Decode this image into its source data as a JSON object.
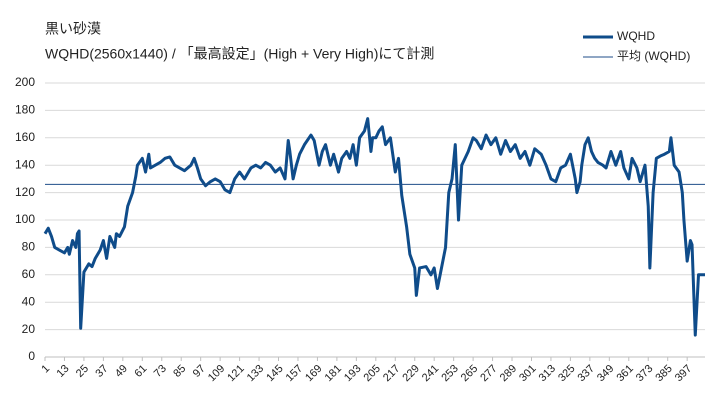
{
  "chart_data": {
    "type": "line",
    "title": "黒い砂漠",
    "subtitle": "WQHD(2560x1440) / 「最高設定」(High + Very High)にて計測",
    "x": [
      1,
      3,
      5,
      7,
      10,
      13,
      15,
      16,
      18,
      20,
      21,
      22,
      23,
      25,
      28,
      30,
      32,
      35,
      37,
      39,
      41,
      44,
      45,
      47,
      50,
      52,
      55,
      57,
      58,
      61,
      63,
      65,
      66,
      69,
      72,
      75,
      78,
      81,
      84,
      87,
      91,
      93,
      95,
      97,
      100,
      103,
      106,
      109,
      112,
      115,
      118,
      121,
      124,
      128,
      131,
      134,
      137,
      140,
      143,
      146,
      149,
      151,
      152,
      154,
      156,
      158,
      161,
      165,
      167,
      170,
      172,
      174,
      177,
      179,
      182,
      184,
      187,
      189,
      191,
      193,
      195,
      198,
      200,
      202,
      203,
      205,
      207,
      209,
      211,
      214,
      217,
      219,
      221,
      224,
      226,
      229,
      230,
      232,
      236,
      239,
      241,
      243,
      245,
      248,
      250,
      252,
      254,
      256,
      258,
      260,
      262,
      265,
      267,
      270,
      273,
      276,
      279,
      282,
      285,
      288,
      291,
      294,
      297,
      300,
      303,
      307,
      310,
      313,
      316,
      319,
      322,
      325,
      328,
      329,
      331,
      332,
      334,
      336,
      338,
      340,
      342,
      345,
      347,
      350,
      353,
      356,
      358,
      361,
      363,
      366,
      368,
      371,
      373,
      374,
      376,
      378,
      381,
      383,
      386,
      387,
      389,
      392,
      394,
      395,
      397,
      399,
      400,
      402,
      404,
      408
    ],
    "series": [
      {
        "name": "WQHD",
        "color": "#0f4c8a",
        "line_width": 3,
        "values": [
          90,
          94,
          88,
          80,
          78,
          76,
          80,
          75,
          85,
          80,
          90,
          92,
          21,
          62,
          68,
          66,
          72,
          78,
          85,
          72,
          88,
          80,
          90,
          88,
          95,
          110,
          120,
          132,
          140,
          145,
          135,
          148,
          138,
          140,
          142,
          145,
          146,
          140,
          138,
          136,
          140,
          145,
          138,
          130,
          125,
          128,
          130,
          128,
          122,
          120,
          130,
          135,
          130,
          138,
          140,
          138,
          142,
          140,
          135,
          138,
          130,
          158,
          150,
          130,
          140,
          148,
          155,
          162,
          158,
          140,
          150,
          155,
          140,
          148,
          135,
          145,
          150,
          145,
          155,
          140,
          160,
          165,
          174,
          150,
          160,
          160,
          165,
          168,
          155,
          160,
          135,
          145,
          118,
          95,
          75,
          65,
          45,
          65,
          66,
          60,
          65,
          50,
          62,
          80,
          120,
          130,
          155,
          100,
          140,
          145,
          150,
          160,
          158,
          152,
          162,
          155,
          160,
          148,
          158,
          150,
          155,
          145,
          150,
          140,
          152,
          148,
          140,
          130,
          128,
          138,
          140,
          148,
          130,
          120,
          128,
          140,
          155,
          160,
          150,
          145,
          142,
          140,
          138,
          150,
          140,
          150,
          138,
          130,
          145,
          138,
          128,
          140,
          110,
          65,
          120,
          145,
          147,
          148,
          150,
          160,
          140,
          135,
          120,
          100,
          70,
          85,
          82,
          16,
          60,
          60
        ]
      },
      {
        "name": "平均 (WQHD)",
        "color": "#1f4e89",
        "line_width": 1,
        "x": [
          1,
          408
        ],
        "values": [
          126,
          126
        ]
      }
    ],
    "xlim": [
      1,
      408
    ],
    "xticks": [
      1,
      13,
      25,
      37,
      49,
      61,
      73,
      85,
      97,
      109,
      121,
      133,
      145,
      157,
      169,
      181,
      193,
      205,
      217,
      229,
      241,
      253,
      265,
      277,
      289,
      301,
      313,
      325,
      337,
      349,
      361,
      373,
      385,
      397
    ],
    "ylim": [
      0,
      200
    ],
    "yticks": [
      0,
      20,
      40,
      60,
      80,
      100,
      120,
      140,
      160,
      180,
      200
    ],
    "grid": true,
    "legend": "top-right"
  }
}
